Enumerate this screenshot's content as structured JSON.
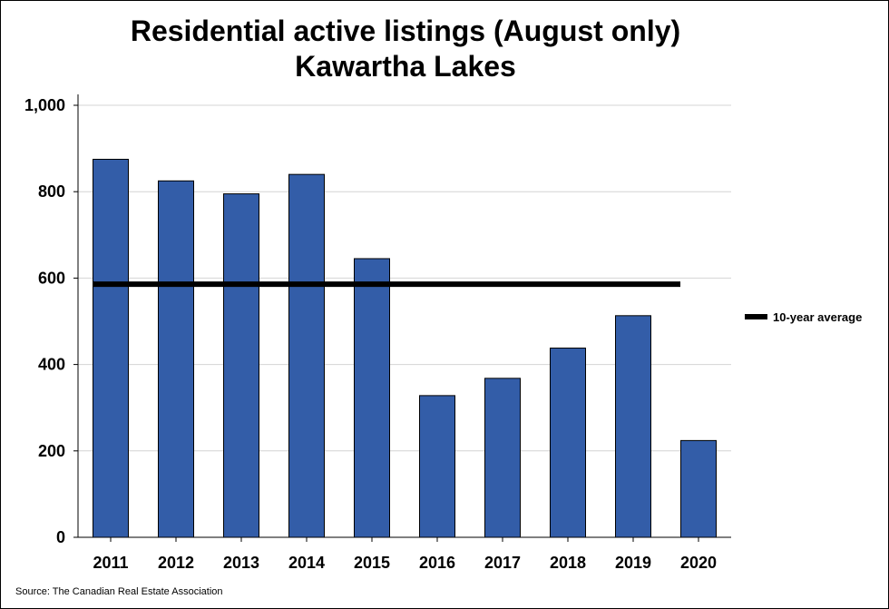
{
  "chart_data": {
    "type": "bar",
    "title": "Residential active listings (August only)",
    "subtitle": "Kawartha Lakes",
    "categories": [
      "2011",
      "2012",
      "2013",
      "2014",
      "2015",
      "2016",
      "2017",
      "2018",
      "2019",
      "2020"
    ],
    "series": [
      {
        "values": [
          875,
          825,
          795,
          840,
          645,
          328,
          368,
          438,
          513,
          224
        ],
        "color": "#335da8"
      }
    ],
    "reference_line": {
      "name": "10-year average",
      "value": 586,
      "color": "#000000"
    },
    "ylim": [
      0,
      1000
    ],
    "yticks": [
      0,
      200,
      400,
      600,
      800,
      1000
    ],
    "ytick_labels": [
      "0",
      "200",
      "400",
      "600",
      "800",
      "1,000"
    ],
    "grid": true,
    "legend": {
      "placement": "right",
      "entries": [
        "10-year average"
      ]
    },
    "source": "Source: The Canadian Real Estate Association"
  }
}
